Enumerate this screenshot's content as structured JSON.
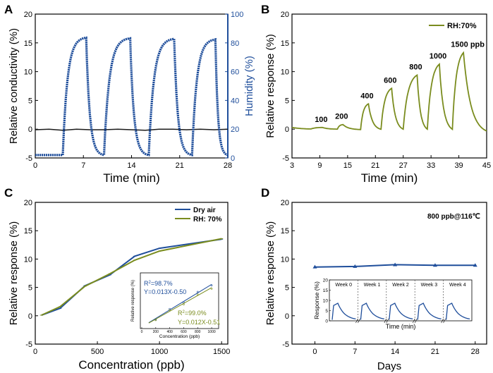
{
  "chart_data": [
    {
      "panel": "A",
      "type": "line",
      "xlabel": "Time (min)",
      "ylabel": "Relative conductivity (%)",
      "ylabel2": "Humidity (%)",
      "xticks": [
        "0",
        "7",
        "14",
        "21",
        "28"
      ],
      "xlim": [
        0,
        28
      ],
      "ylim": [
        -5,
        20
      ],
      "yticks": [
        "-5",
        "0",
        "5",
        "10",
        "15",
        "20"
      ],
      "ylim2": [
        0,
        100
      ],
      "yticks2": [
        "0",
        "20",
        "40",
        "60",
        "80",
        "100"
      ],
      "series": [
        {
          "name": "Relative conductivity",
          "color": "#1a1a1a",
          "x": [
            0,
            2,
            4,
            6,
            8,
            10,
            12,
            14,
            16,
            18,
            20,
            22,
            24,
            26,
            28
          ],
          "values": [
            -0.1,
            0.0,
            -0.2,
            0.0,
            -0.1,
            -0.1,
            0.0,
            -0.1,
            -0.2,
            0.0,
            0.0,
            -0.1,
            0.0,
            -0.1,
            0.0
          ]
        },
        {
          "name": "Humidity",
          "axis": "right",
          "color": "#1f4e9b",
          "cycles": [
            {
              "start": 4.0,
              "peak": 7.4,
              "off": 7.4,
              "end": 10.0
            },
            {
              "start": 10.0,
              "peak": 13.8,
              "off": 13.8,
              "end": 16.5
            },
            {
              "start": 16.5,
              "peak": 20.2,
              "off": 20.2,
              "end": 22.8
            },
            {
              "start": 22.8,
              "peak": 26.2,
              "off": 26.2,
              "end": 28.0
            }
          ],
          "low": -4.5,
          "high": [
            15.9,
            15.8,
            15.7,
            15.6
          ]
        }
      ]
    },
    {
      "panel": "B",
      "type": "line",
      "xlabel": "Time (min)",
      "ylabel": "Relative response (%)",
      "xticks": [
        "3",
        "9",
        "15",
        "21",
        "27",
        "33",
        "39",
        "45"
      ],
      "xlim": [
        3,
        45
      ],
      "ylim": [
        -5,
        20
      ],
      "yticks": [
        "-5",
        "0",
        "5",
        "10",
        "15",
        "20"
      ],
      "legend": "RH:70%",
      "color": "#7a8c1e",
      "pulses": [
        {
          "label": "100",
          "start": 7.0,
          "peak": 9.6,
          "height": 0.3
        },
        {
          "label": "200",
          "start": 12.8,
          "peak": 14.0,
          "height": 0.8
        },
        {
          "label": "400",
          "start": 17.8,
          "peak": 19.5,
          "height": 4.4
        },
        {
          "label": "600",
          "start": 22.2,
          "peak": 24.5,
          "height": 7.1
        },
        {
          "label": "800",
          "start": 27.0,
          "peak": 30.0,
          "height": 9.4
        },
        {
          "label": "1000",
          "start": 32.2,
          "peak": 34.8,
          "height": 11.3
        },
        {
          "label": "1500 ppb",
          "start": 37.6,
          "peak": 40.0,
          "height": 13.3
        }
      ]
    },
    {
      "panel": "C",
      "type": "line",
      "xlabel": "Concentration (ppb)",
      "ylabel": "Relative response (%)",
      "xticks": [
        "0",
        "500",
        "1000",
        "1500"
      ],
      "xlim": [
        0,
        1550
      ],
      "ylim": [
        -5,
        20
      ],
      "yticks": [
        "-5",
        "0",
        "5",
        "10",
        "15",
        "20"
      ],
      "x": [
        50,
        200,
        400,
        600,
        800,
        1000,
        1500
      ],
      "series": [
        {
          "name": "Dry air",
          "color": "#1f4e9b",
          "values": [
            0.1,
            1.3,
            5.3,
            7.2,
            10.5,
            11.9,
            13.5
          ]
        },
        {
          "name": "RH: 70%",
          "color": "#7a8c1e",
          "values": [
            0.1,
            1.6,
            5.2,
            7.4,
            9.8,
            11.4,
            13.6
          ]
        }
      ],
      "inset": {
        "ylabel": "Relative response (%)",
        "xlabel": "Concentration (ppb)",
        "xticks": [
          "0",
          "200",
          "400",
          "600",
          "800",
          "1000"
        ],
        "eq1_r": "R",
        "eq1_sup": "2",
        "eq1_rest": "=98.7%",
        "eq1_fit": "Y=0.013X-0.50",
        "eq2_r": "R",
        "eq2_sup": "2",
        "eq2_rest": "=99.0%",
        "eq2_fit": "Y=0.012X-0.51"
      }
    },
    {
      "panel": "D",
      "type": "line",
      "xlabel": "Days",
      "ylabel": "Relative response (%)",
      "xticks": [
        "0",
        "7",
        "14",
        "21",
        "28"
      ],
      "xlim": [
        -4,
        30
      ],
      "ylim": [
        -5,
        20
      ],
      "yticks": [
        "-5",
        "0",
        "5",
        "10",
        "15",
        "20"
      ],
      "annotation": "800 ppb@116℃",
      "color": "#1f4e9b",
      "x": [
        0,
        7,
        14,
        21,
        28
      ],
      "values": [
        8.6,
        8.7,
        9.0,
        8.9,
        8.9
      ],
      "inset": {
        "ylabel": "Response (%)",
        "xlabel": "Time (min)",
        "yticks": [
          "0",
          "5",
          "10",
          "15",
          "20"
        ],
        "weeks": [
          "Week 0",
          "Week 1",
          "Week 2",
          "Week 3",
          "Week 4"
        ]
      }
    }
  ],
  "panel_letters": [
    "A",
    "B",
    "C",
    "D"
  ]
}
